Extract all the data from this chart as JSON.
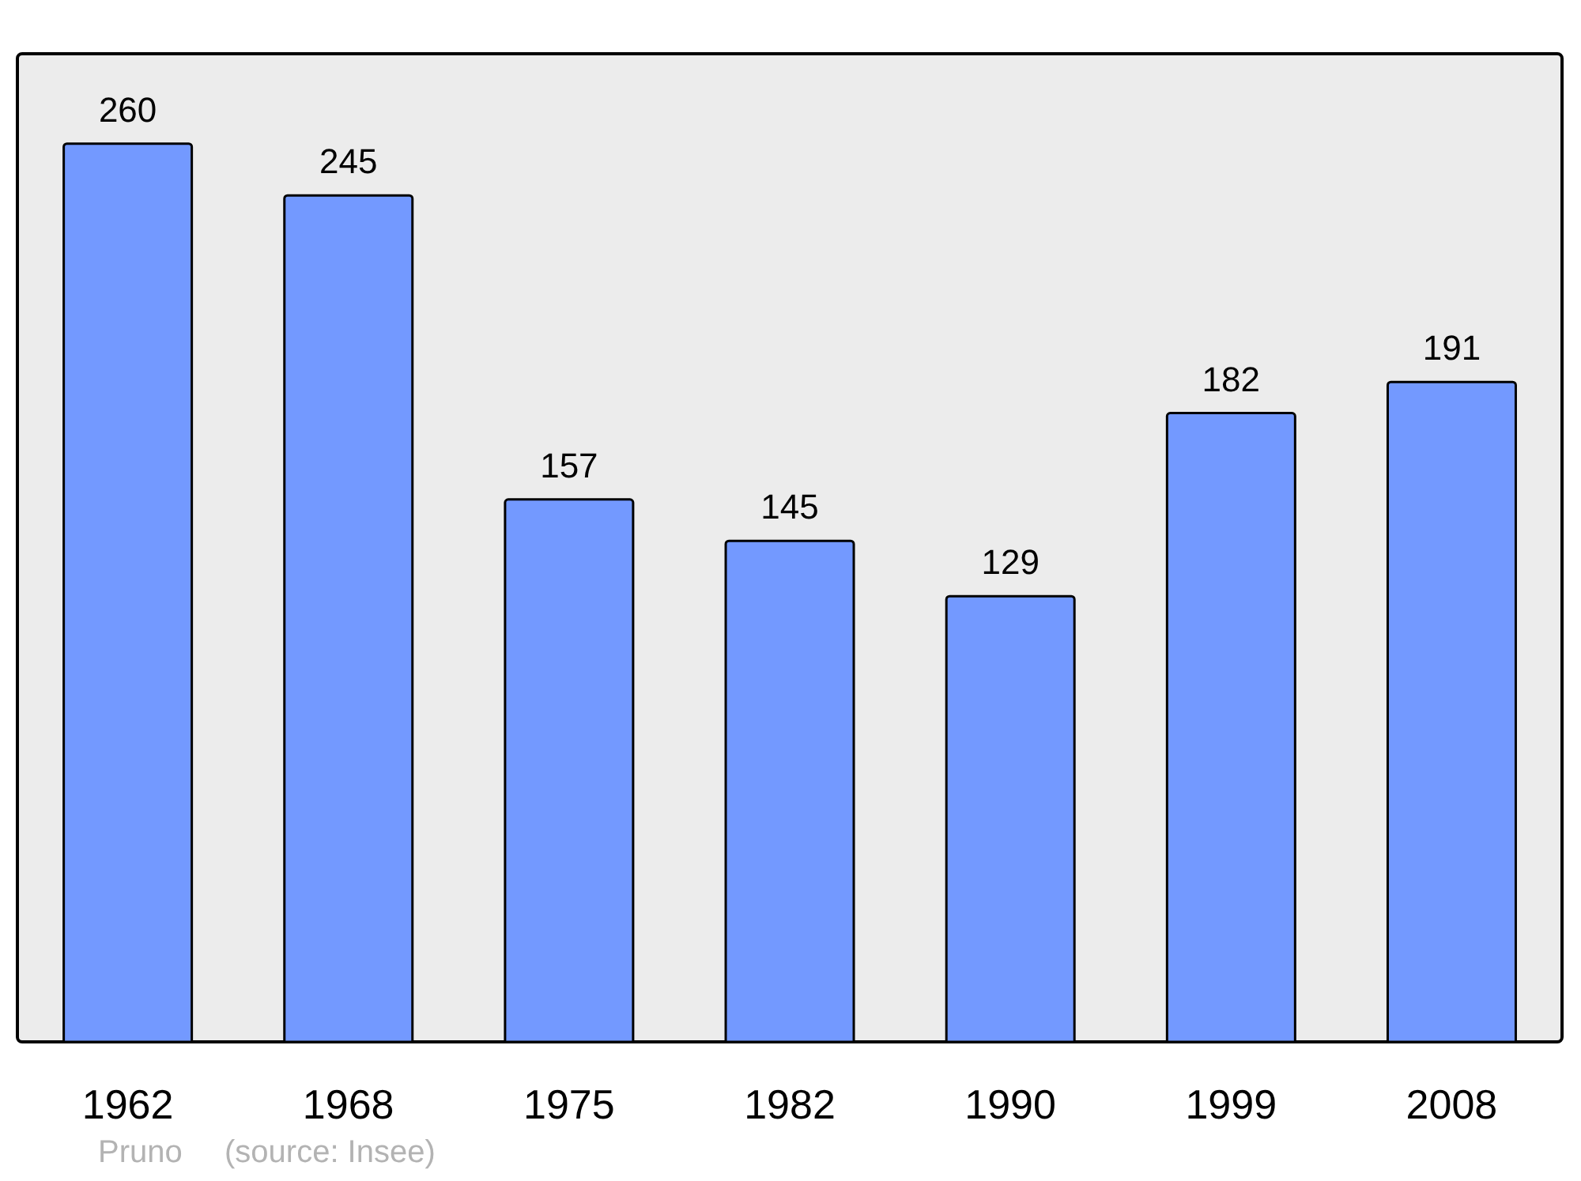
{
  "chart_data": {
    "type": "bar",
    "categories": [
      "1962",
      "1968",
      "1975",
      "1982",
      "1990",
      "1999",
      "2008"
    ],
    "values": [
      260,
      245,
      157,
      145,
      129,
      182,
      191
    ],
    "color": "#7399ff",
    "data_labels": true,
    "annotations": [
      "Pruno",
      "(source: Insee)"
    ]
  }
}
